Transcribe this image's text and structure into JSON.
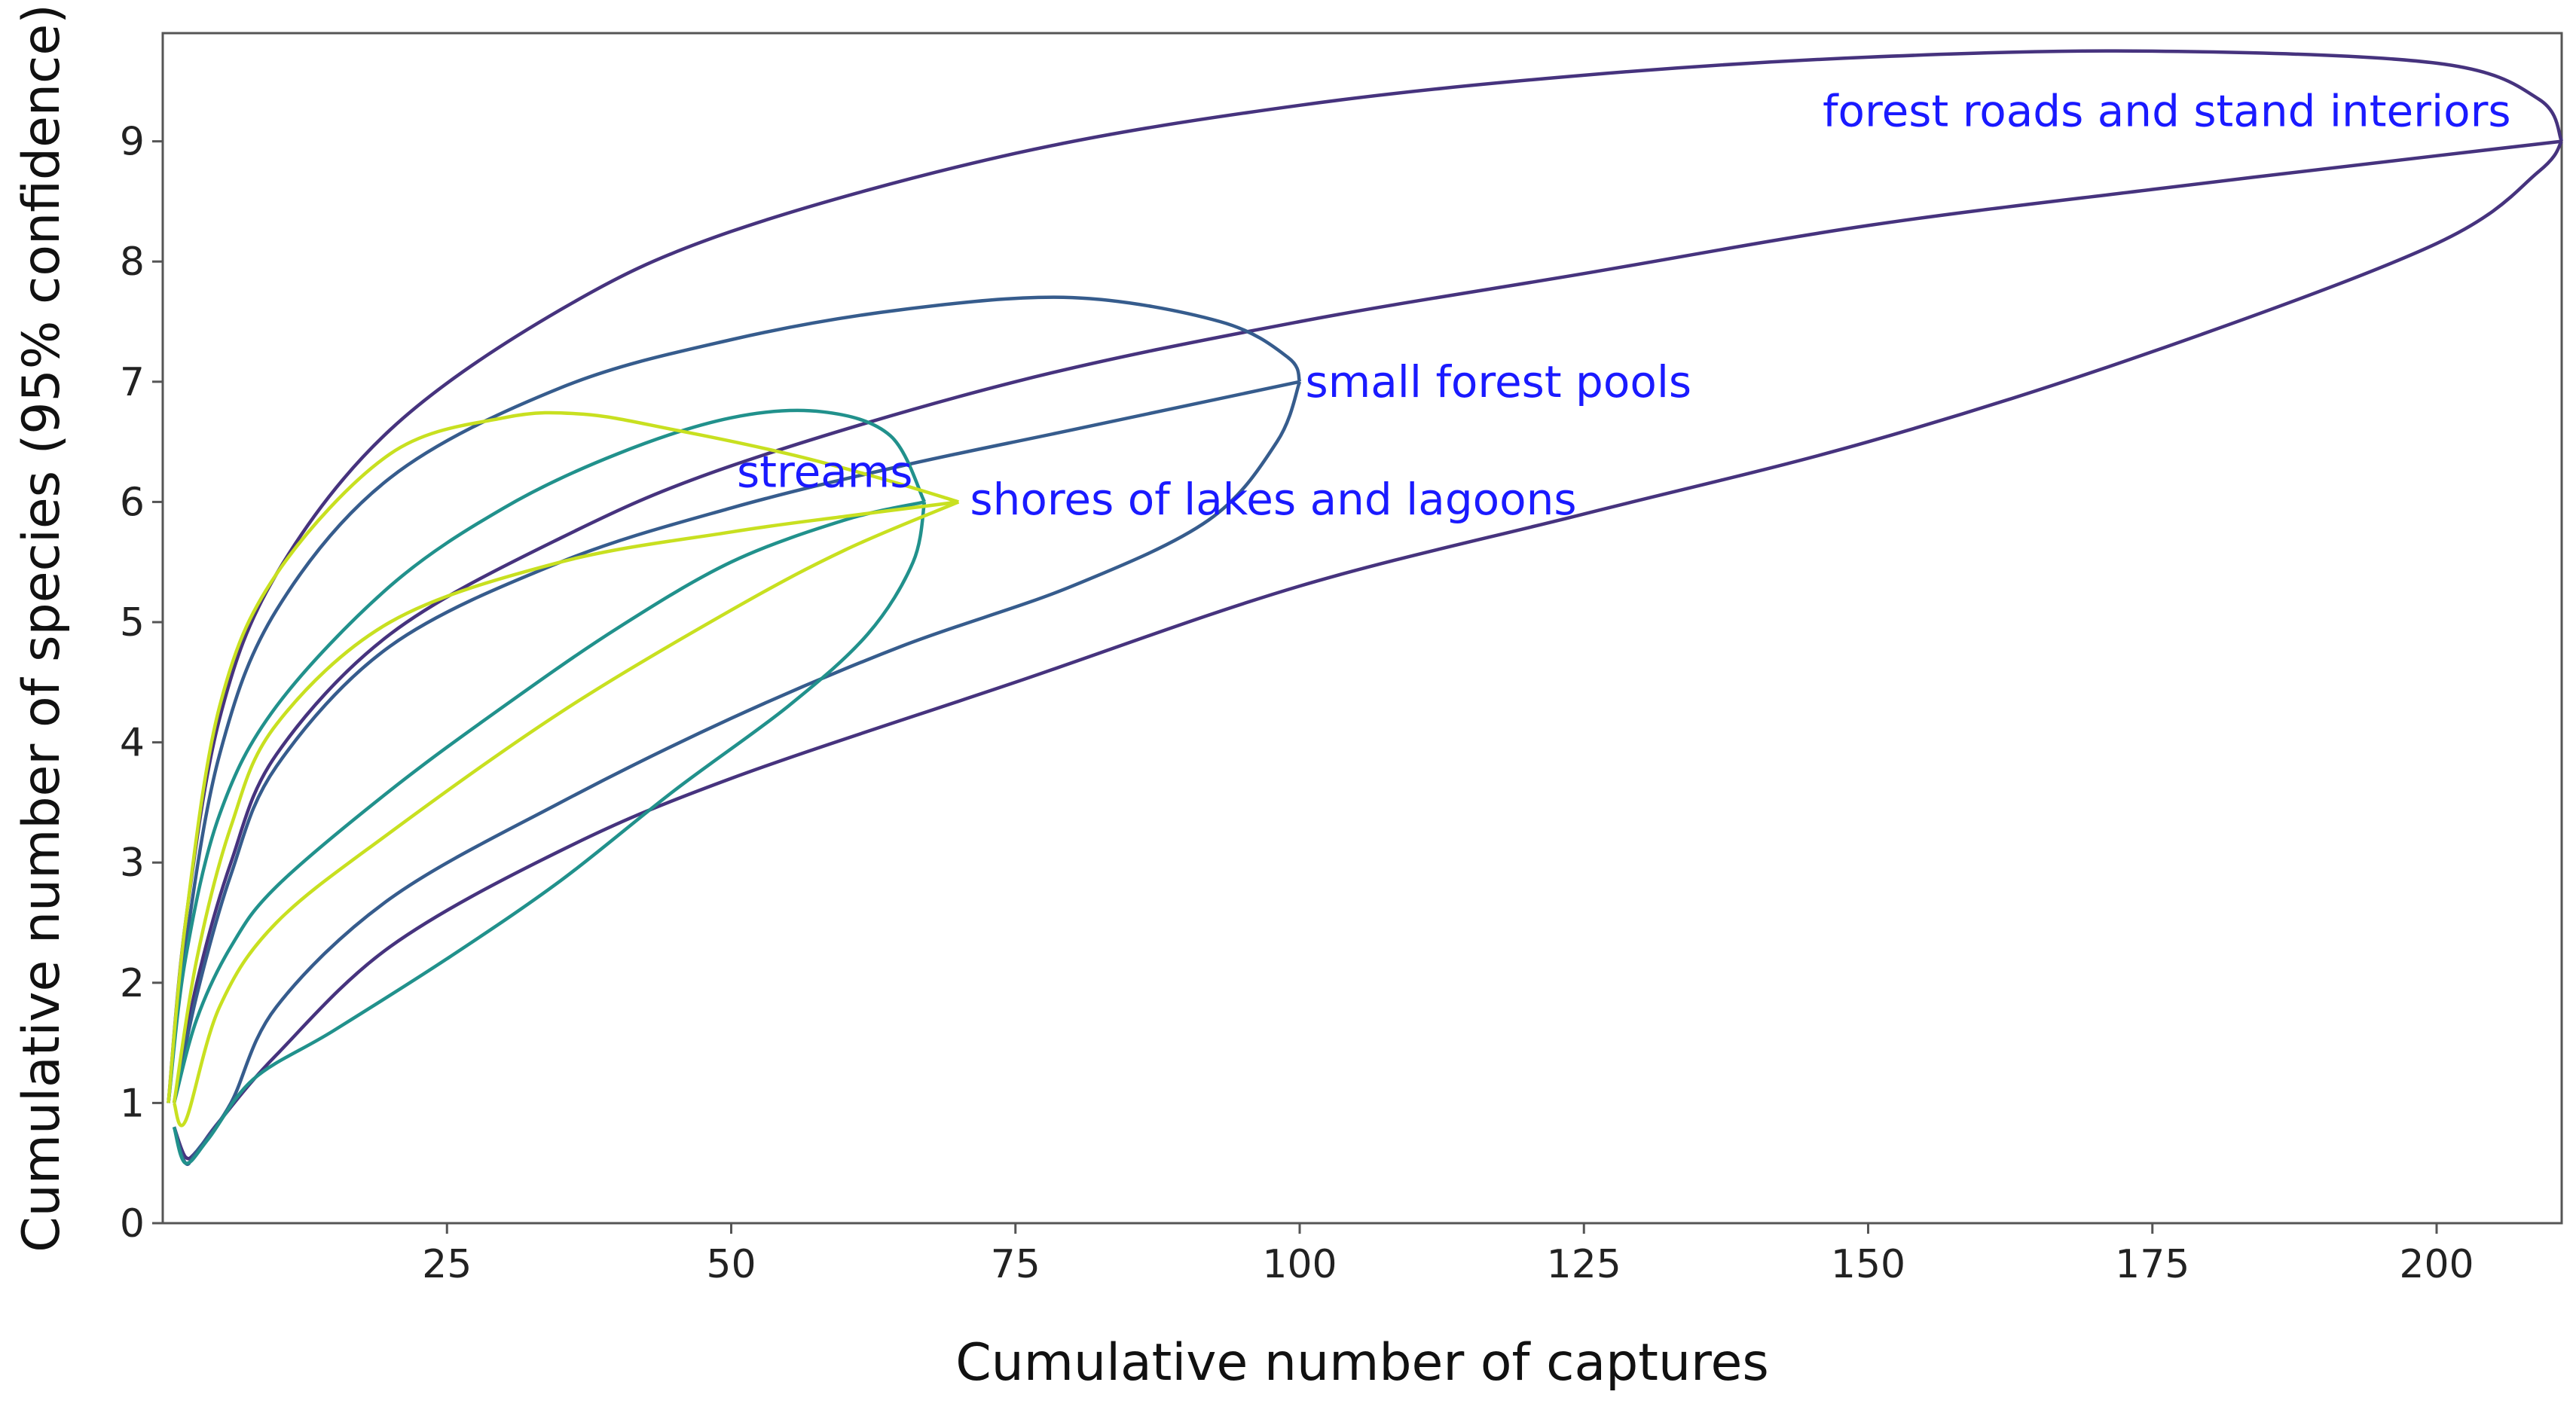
{
  "chart_data": {
    "type": "line",
    "xlabel": "Cumulative number of captures",
    "ylabel": "Cumulative number of species (95% confidence)",
    "xlim": [
      0,
      211
    ],
    "ylim": [
      0,
      9.9
    ],
    "x_ticks": [
      "25",
      "50",
      "75",
      "100",
      "125",
      "150",
      "175",
      "200"
    ],
    "x_tick_values": [
      25,
      50,
      75,
      100,
      125,
      150,
      175,
      200
    ],
    "y_ticks": [
      "0",
      "1",
      "2",
      "3",
      "4",
      "5",
      "6",
      "7",
      "8",
      "9"
    ],
    "y_tick_values": [
      0,
      1,
      2,
      3,
      4,
      5,
      6,
      7,
      8,
      9
    ],
    "grid": false,
    "label_color": "#1a1aff",
    "series": [
      {
        "name": "forest roads and stand interiors",
        "color": "#46337e",
        "end": [
          211,
          9
        ],
        "upper": [
          [
            0.5,
            1
          ],
          [
            2,
            2.5
          ],
          [
            5,
            4.2
          ],
          [
            10,
            5.4
          ],
          [
            20,
            6.6
          ],
          [
            35,
            7.6
          ],
          [
            50,
            8.25
          ],
          [
            75,
            8.9
          ],
          [
            100,
            9.3
          ],
          [
            125,
            9.55
          ],
          [
            150,
            9.7
          ],
          [
            175,
            9.75
          ],
          [
            200,
            9.65
          ],
          [
            209,
            9.35
          ],
          [
            211,
            9
          ]
        ],
        "mean": [
          [
            1,
            1
          ],
          [
            3,
            2
          ],
          [
            6,
            3
          ],
          [
            10,
            3.9
          ],
          [
            20,
            4.9
          ],
          [
            35,
            5.7
          ],
          [
            50,
            6.3
          ],
          [
            75,
            7
          ],
          [
            100,
            7.5
          ],
          [
            125,
            7.9
          ],
          [
            150,
            8.3
          ],
          [
            175,
            8.6
          ],
          [
            200,
            8.88
          ],
          [
            211,
            9
          ]
        ],
        "lower": [
          [
            1,
            0.8
          ],
          [
            2,
            0.55
          ],
          [
            3,
            0.6
          ],
          [
            5,
            0.85
          ],
          [
            10,
            1.4
          ],
          [
            20,
            2.3
          ],
          [
            35,
            3.1
          ],
          [
            50,
            3.7
          ],
          [
            75,
            4.5
          ],
          [
            100,
            5.3
          ],
          [
            125,
            5.9
          ],
          [
            150,
            6.5
          ],
          [
            175,
            7.25
          ],
          [
            200,
            8.15
          ],
          [
            209,
            8.75
          ],
          [
            211,
            9
          ]
        ]
      },
      {
        "name": "small forest pools",
        "color": "#365c8d",
        "end": [
          100,
          7
        ],
        "upper": [
          [
            0.5,
            1
          ],
          [
            2,
            2.3
          ],
          [
            5,
            3.9
          ],
          [
            10,
            5.1
          ],
          [
            20,
            6.2
          ],
          [
            35,
            6.95
          ],
          [
            50,
            7.35
          ],
          [
            65,
            7.6
          ],
          [
            80,
            7.7
          ],
          [
            93,
            7.5
          ],
          [
            99,
            7.2
          ],
          [
            100,
            7
          ]
        ],
        "mean": [
          [
            1,
            1
          ],
          [
            3,
            1.9
          ],
          [
            6,
            2.9
          ],
          [
            10,
            3.8
          ],
          [
            20,
            4.8
          ],
          [
            35,
            5.5
          ],
          [
            50,
            5.95
          ],
          [
            65,
            6.3
          ],
          [
            80,
            6.6
          ],
          [
            100,
            7
          ]
        ],
        "lower": [
          [
            1,
            0.8
          ],
          [
            2,
            0.5
          ],
          [
            3,
            0.6
          ],
          [
            6,
            1
          ],
          [
            10,
            1.8
          ],
          [
            20,
            2.7
          ],
          [
            35,
            3.5
          ],
          [
            50,
            4.2
          ],
          [
            65,
            4.8
          ],
          [
            80,
            5.3
          ],
          [
            92,
            5.85
          ],
          [
            98,
            6.5
          ],
          [
            100,
            7
          ]
        ]
      },
      {
        "name": "streams",
        "color": "#21918c",
        "end": [
          67,
          6
        ],
        "upper": [
          [
            0.5,
            1
          ],
          [
            2,
            2.2
          ],
          [
            5,
            3.4
          ],
          [
            10,
            4.3
          ],
          [
            20,
            5.3
          ],
          [
            30,
            5.95
          ],
          [
            40,
            6.4
          ],
          [
            50,
            6.7
          ],
          [
            58,
            6.75
          ],
          [
            64,
            6.55
          ],
          [
            67,
            6
          ]
        ],
        "mean": [
          [
            1,
            1
          ],
          [
            3,
            1.7
          ],
          [
            6,
            2.3
          ],
          [
            10,
            2.8
          ],
          [
            20,
            3.6
          ],
          [
            30,
            4.3
          ],
          [
            40,
            4.95
          ],
          [
            50,
            5.5
          ],
          [
            60,
            5.85
          ],
          [
            67,
            6
          ]
        ],
        "lower": [
          [
            1,
            0.8
          ],
          [
            2,
            0.5
          ],
          [
            4,
            0.7
          ],
          [
            8,
            1.2
          ],
          [
            15,
            1.6
          ],
          [
            25,
            2.2
          ],
          [
            35,
            2.85
          ],
          [
            45,
            3.6
          ],
          [
            55,
            4.3
          ],
          [
            62,
            4.9
          ],
          [
            66,
            5.5
          ],
          [
            67,
            6
          ]
        ]
      },
      {
        "name": "shores of lakes and lagoons",
        "color": "#c8e020",
        "end": [
          70,
          6
        ],
        "upper": [
          [
            0.5,
            1
          ],
          [
            2,
            2.5
          ],
          [
            5,
            4.3
          ],
          [
            10,
            5.4
          ],
          [
            20,
            6.4
          ],
          [
            30,
            6.7
          ],
          [
            37,
            6.73
          ],
          [
            45,
            6.6
          ],
          [
            55,
            6.4
          ],
          [
            63,
            6.2
          ],
          [
            70,
            6
          ]
        ],
        "mean": [
          [
            1,
            1
          ],
          [
            3,
            2.2
          ],
          [
            6,
            3.3
          ],
          [
            10,
            4.15
          ],
          [
            20,
            5
          ],
          [
            35,
            5.5
          ],
          [
            50,
            5.75
          ],
          [
            60,
            5.88
          ],
          [
            70,
            6
          ]
        ],
        "lower": [
          [
            1,
            1
          ],
          [
            2,
            0.85
          ],
          [
            5,
            1.8
          ],
          [
            10,
            2.5
          ],
          [
            20,
            3.25
          ],
          [
            35,
            4.25
          ],
          [
            50,
            5.1
          ],
          [
            60,
            5.6
          ],
          [
            70,
            6
          ]
        ]
      }
    ],
    "labels": [
      {
        "text": "forest roads and stand interiors",
        "x": 146,
        "y": 9.25,
        "series": 0
      },
      {
        "text": "small forest pools",
        "x": 100.5,
        "y": 7,
        "series": 1
      },
      {
        "text": "streams",
        "x": 50.5,
        "y": 6.25,
        "series": 2
      },
      {
        "text": "shores of lakes and lagoons",
        "x": 71,
        "y": 6.02,
        "series": 3
      }
    ]
  }
}
